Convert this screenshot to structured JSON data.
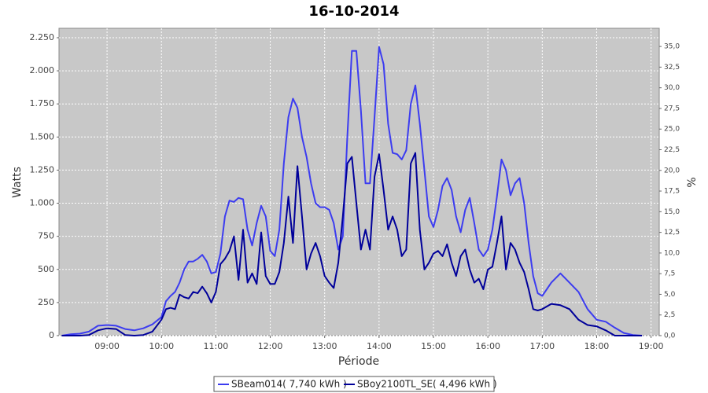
{
  "chart_data": {
    "type": "line",
    "title": "16-10-2014",
    "x_label": "Période",
    "y_label": "Watts",
    "y2_label": "%",
    "x": [
      "08:10",
      "08:20",
      "08:30",
      "08:40",
      "08:50",
      "09:00",
      "09:10",
      "09:20",
      "09:30",
      "09:40",
      "09:50",
      "10:00",
      "10:05",
      "10:10",
      "10:15",
      "10:20",
      "10:25",
      "10:30",
      "10:35",
      "10:40",
      "10:45",
      "10:50",
      "10:55",
      "11:00",
      "11:05",
      "11:10",
      "11:15",
      "11:20",
      "11:25",
      "11:30",
      "11:35",
      "11:40",
      "11:45",
      "11:50",
      "11:55",
      "12:00",
      "12:05",
      "12:10",
      "12:15",
      "12:20",
      "12:25",
      "12:30",
      "12:35",
      "12:40",
      "12:45",
      "12:50",
      "12:55",
      "13:00",
      "13:05",
      "13:10",
      "13:15",
      "13:20",
      "13:25",
      "13:30",
      "13:35",
      "13:40",
      "13:45",
      "13:50",
      "13:55",
      "14:00",
      "14:05",
      "14:10",
      "14:15",
      "14:20",
      "14:25",
      "14:30",
      "14:35",
      "14:40",
      "14:45",
      "14:50",
      "14:55",
      "15:00",
      "15:05",
      "15:10",
      "15:15",
      "15:20",
      "15:25",
      "15:30",
      "15:35",
      "15:40",
      "15:45",
      "15:50",
      "15:55",
      "16:00",
      "16:05",
      "16:10",
      "16:15",
      "16:20",
      "16:25",
      "16:30",
      "16:35",
      "16:40",
      "16:45",
      "16:50",
      "16:55",
      "17:00",
      "17:10",
      "17:20",
      "17:30",
      "17:40",
      "17:50",
      "18:00",
      "18:10",
      "18:20",
      "18:30",
      "18:40",
      "18:50"
    ],
    "series": [
      {
        "name": "SBeam014( 7,740 kWh )",
        "color": "#3c3cf0",
        "values": [
          0,
          10,
          15,
          30,
          75,
          80,
          75,
          50,
          40,
          55,
          85,
          140,
          260,
          300,
          330,
          400,
          500,
          560,
          560,
          580,
          610,
          560,
          470,
          480,
          620,
          900,
          1020,
          1010,
          1040,
          1030,
          800,
          680,
          850,
          980,
          900,
          640,
          600,
          800,
          1300,
          1650,
          1790,
          1720,
          1500,
          1350,
          1150,
          1000,
          970,
          970,
          950,
          850,
          650,
          750,
          1500,
          2150,
          2150,
          1700,
          1150,
          1150,
          1650,
          2180,
          2050,
          1600,
          1380,
          1370,
          1330,
          1400,
          1750,
          1890,
          1600,
          1250,
          900,
          820,
          950,
          1130,
          1190,
          1100,
          900,
          780,
          950,
          1040,
          850,
          650,
          600,
          650,
          800,
          1050,
          1330,
          1250,
          1060,
          1150,
          1190,
          1000,
          700,
          450,
          320,
          300,
          400,
          470,
          400,
          330,
          200,
          120,
          105,
          60,
          20,
          5,
          0
        ]
      },
      {
        "name": "SBoy2100TL_SE( 4,496 kWh )",
        "color": "#00009a",
        "values": [
          0,
          0,
          0,
          5,
          40,
          55,
          50,
          5,
          0,
          5,
          30,
          120,
          200,
          210,
          200,
          310,
          290,
          280,
          330,
          320,
          370,
          320,
          250,
          330,
          540,
          580,
          640,
          750,
          420,
          800,
          400,
          470,
          390,
          780,
          450,
          390,
          390,
          480,
          700,
          1050,
          700,
          1280,
          900,
          500,
          620,
          700,
          600,
          450,
          400,
          360,
          550,
          900,
          1300,
          1350,
          1000,
          650,
          800,
          650,
          1200,
          1370,
          1100,
          800,
          900,
          800,
          600,
          650,
          1300,
          1380,
          800,
          500,
          550,
          620,
          640,
          600,
          690,
          550,
          450,
          600,
          650,
          500,
          400,
          430,
          350,
          500,
          520,
          700,
          900,
          500,
          700,
          650,
          550,
          480,
          350,
          200,
          190,
          200,
          240,
          230,
          200,
          120,
          80,
          70,
          40,
          0,
          0,
          0,
          0
        ]
      }
    ],
    "xlim": [
      "08:07",
      "19:09"
    ],
    "xticks": [
      "09:00",
      "10:00",
      "11:00",
      "12:00",
      "13:00",
      "14:00",
      "15:00",
      "16:00",
      "17:00",
      "18:00",
      "19:00"
    ],
    "ylim": [
      0,
      2321
    ],
    "yticks": [
      0,
      250,
      500,
      750,
      {
        "value": 1000,
        "label": "1.000"
      },
      {
        "value": 1250,
        "label": "1.250"
      },
      {
        "value": 1500,
        "label": "1.500"
      },
      {
        "value": 1750,
        "label": "1.750"
      },
      {
        "value": 2000,
        "label": "2.000"
      },
      {
        "value": 2250,
        "label": "2.250"
      }
    ],
    "y2lim": [
      0,
      37.2
    ],
    "y2ticks": [
      {
        "value": 0,
        "label": "0,0"
      },
      {
        "value": 2.5,
        "label": "2,5"
      },
      {
        "value": 5,
        "label": "5,0"
      },
      {
        "value": 7.5,
        "label": "7,5"
      },
      {
        "value": 10,
        "label": "10,0"
      },
      {
        "value": 12.5,
        "label": "12,5"
      },
      {
        "value": 15,
        "label": "15,0"
      },
      {
        "value": 17.5,
        "label": "17,5"
      },
      {
        "value": 20,
        "label": "20,0"
      },
      {
        "value": 22.5,
        "label": "22,5"
      },
      {
        "value": 25,
        "label": "25,0"
      },
      {
        "value": 27.5,
        "label": "27,5"
      },
      {
        "value": 30,
        "label": "30,0"
      },
      {
        "value": 32.5,
        "label": "32,5"
      },
      {
        "value": 35,
        "label": "35,0"
      }
    ],
    "grid": true,
    "legend": "bottom"
  }
}
